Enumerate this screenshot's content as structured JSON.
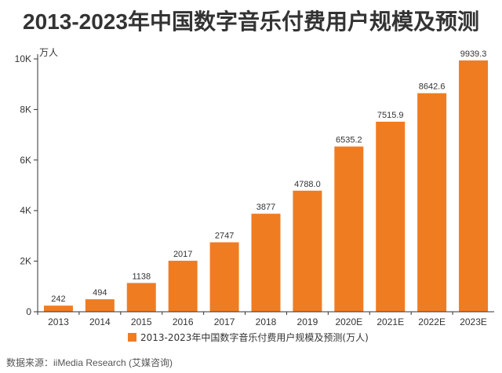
{
  "title": "2013-2023年中国数字音乐付费用户规模及预测",
  "source": "数据来源：iiMedia Research (艾媒咨询)",
  "colors": {
    "bar": "#F07C22",
    "axis": "#333333",
    "grid": "#E6E6E6"
  },
  "chart_data": {
    "type": "bar",
    "title": "2013-2023年中国数字音乐付费用户规模及预测",
    "unit_label": "万人",
    "categories": [
      "2013",
      "2014",
      "2015",
      "2016",
      "2017",
      "2018",
      "2019",
      "2020E",
      "2021E",
      "2022E",
      "2023E"
    ],
    "values": [
      242,
      494,
      1138,
      2017,
      2747,
      3877,
      4788.0,
      6535.2,
      7515.9,
      8642.6,
      9939.3
    ],
    "value_labels": [
      "242",
      "494",
      "1138",
      "2017",
      "2747",
      "3877",
      "4788.0",
      "6535.2",
      "7515.9",
      "8642.6",
      "9939.3"
    ],
    "series": [
      {
        "name": "2013-2023年中国数字音乐付费用户规模及预测(万人)",
        "values": [
          242,
          494,
          1138,
          2017,
          2747,
          3877,
          4788.0,
          6535.2,
          7515.9,
          8642.6,
          9939.3
        ]
      }
    ],
    "yticks": [
      0,
      2000,
      4000,
      6000,
      8000,
      10000
    ],
    "ytick_labels": [
      "0",
      "2K",
      "4K",
      "6K",
      "8K",
      "10K"
    ],
    "ylim": [
      0,
      10000
    ],
    "xlabel": "",
    "ylabel": "万人",
    "legend_position": "bottom-center",
    "grid": false
  }
}
